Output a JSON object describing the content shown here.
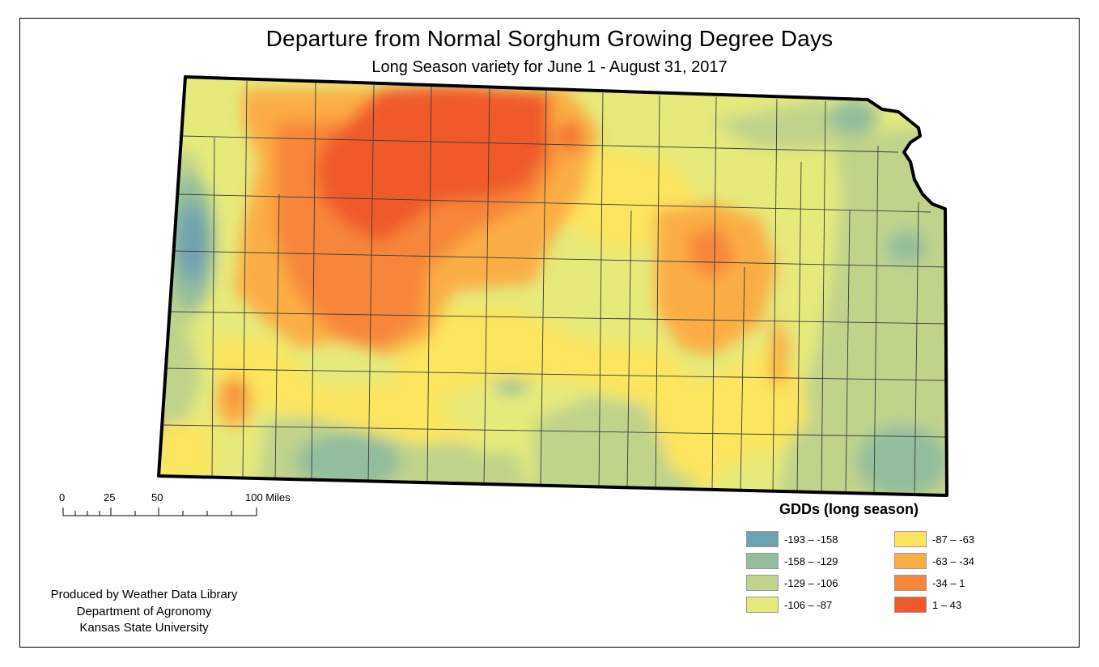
{
  "title": "Departure from Normal Sorghum Growing Degree Days",
  "subtitle": "Long Season variety for June 1 - August 31, 2017",
  "scale_bar": {
    "labels": [
      "0",
      "25",
      "50",
      "100 Miles"
    ]
  },
  "credits": {
    "line1": "Produced by Weather Data Library",
    "line2": "Department of Agronomy",
    "line3": "Kansas State University"
  },
  "legend": {
    "title": "GDDs (long season)",
    "items": [
      {
        "label": "-193 – -158",
        "color": "#6ea2b1"
      },
      {
        "label": "-158 – -129",
        "color": "#93bd9d"
      },
      {
        "label": "-129 – -106",
        "color": "#bfd38b"
      },
      {
        "label": "-106 – -87",
        "color": "#e6ea7b"
      },
      {
        "label": "-87 – -63",
        "color": "#fce55e"
      },
      {
        "label": "-63 – -34",
        "color": "#fbad45"
      },
      {
        "label": "-34 – 1",
        "color": "#f7863a"
      },
      {
        "label": "1 – 43",
        "color": "#f05a2b"
      }
    ]
  }
}
